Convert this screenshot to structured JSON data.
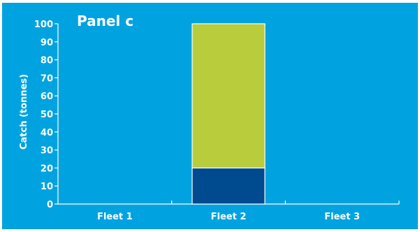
{
  "chart_data": {
    "type": "bar",
    "title": "Panel c",
    "ylabel": "Catch (tonnes)",
    "xlabel": "",
    "ylim": [
      0,
      100
    ],
    "yticks": [
      0,
      10,
      20,
      30,
      40,
      50,
      60,
      70,
      80,
      90,
      100
    ],
    "categories": [
      "Fleet 1",
      "Fleet 2",
      "Fleet 3"
    ],
    "stacked": true,
    "grid": false,
    "series": [
      {
        "values": [
          0,
          20,
          0
        ],
        "color": "#004a8f"
      },
      {
        "values": [
          0,
          80,
          0
        ],
        "color": "#b8cc3c"
      }
    ],
    "colors": {
      "background": "#00a3e0",
      "axis": "#ffffff",
      "text": "#ffffff"
    }
  }
}
